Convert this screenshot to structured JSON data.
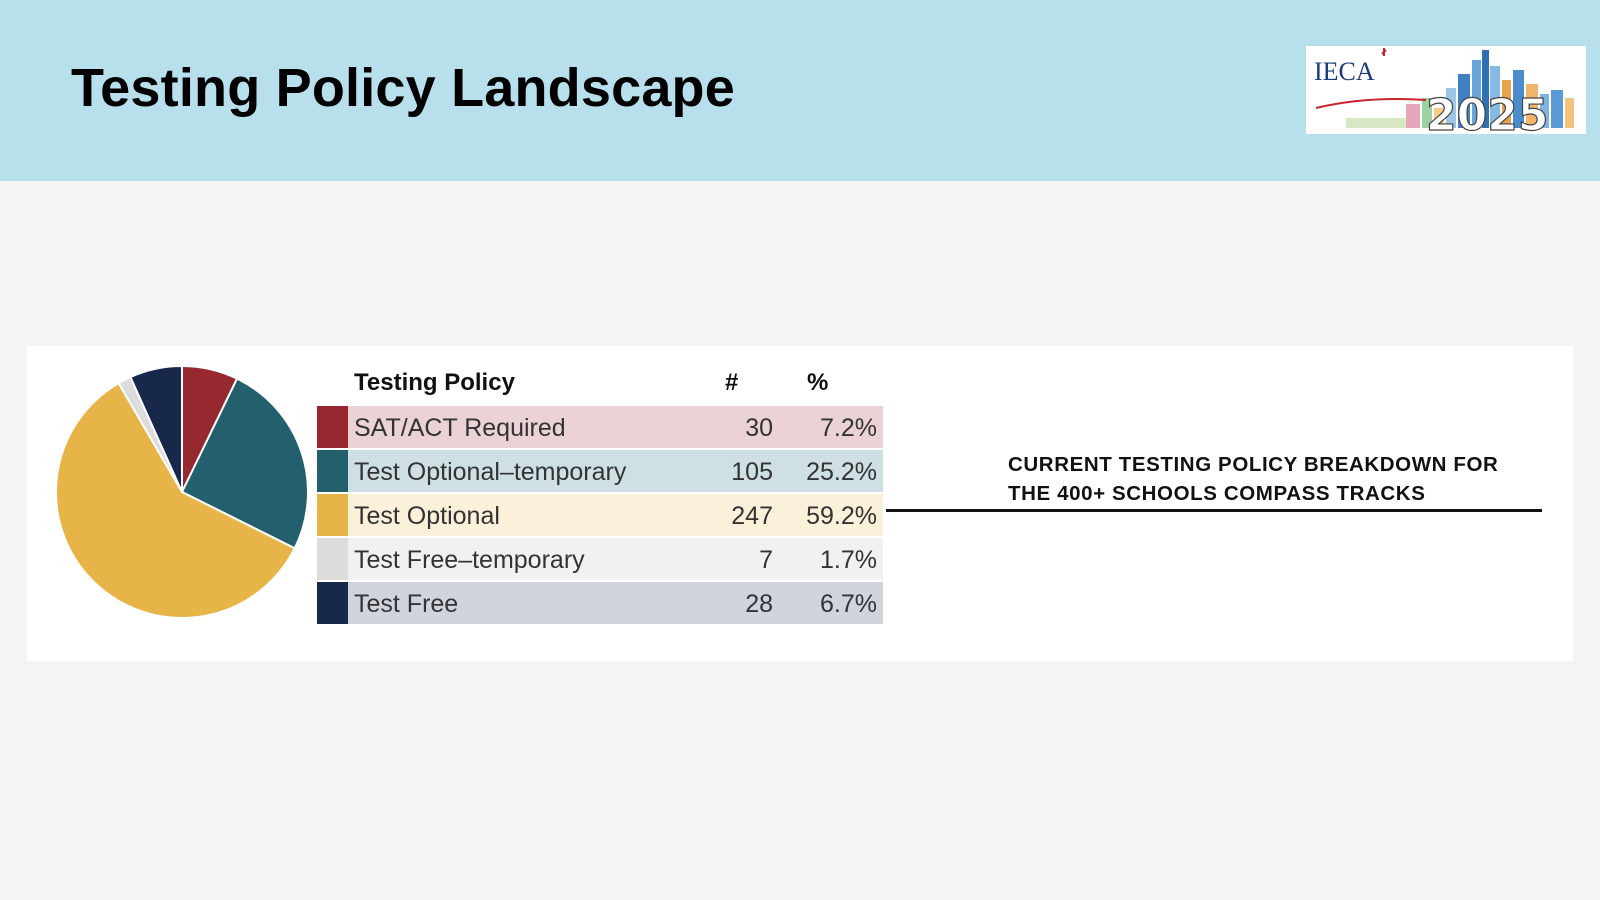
{
  "slide": {
    "title": "Testing Policy Landscape",
    "caption_line1": "CURRENT TESTING POLICY BREAKDOWN FOR",
    "caption_line2": "THE 400+ SCHOOLS COMPASS TRACKS"
  },
  "logo": {
    "text": "IECA",
    "year": "2025"
  },
  "table": {
    "col_policy": "Testing Policy",
    "col_count": "#",
    "col_pct": "%"
  },
  "chart_data": {
    "type": "pie",
    "categories": [
      "SAT/ACT Required",
      "Test Optional–temporary",
      "Test Optional",
      "Test Free–temporary",
      "Test Free"
    ],
    "values": [
      30,
      105,
      247,
      7,
      28
    ],
    "percent_labels": [
      "7.2%",
      "25.2%",
      "59.2%",
      "1.7%",
      "6.7%"
    ],
    "colors": [
      "#98282f",
      "#245f6e",
      "#e6b447",
      "#dcdcdc",
      "#17284a"
    ],
    "band_colors": [
      "#ebd2d5",
      "#cfe0e5",
      "#fbf0d9",
      "#f1f1f1",
      "#cfd4dd"
    ],
    "start_angle_deg": 0,
    "direction": "clockwise",
    "legend": "right",
    "rows": [
      {
        "label": "SAT/ACT Required",
        "count": "30",
        "pct": "7.2%"
      },
      {
        "label": "Test Optional–temporary",
        "count": "105",
        "pct": "25.2%"
      },
      {
        "label": "Test Optional",
        "count": "247",
        "pct": "59.2%"
      },
      {
        "label": "Test Free–temporary",
        "count": "7",
        "pct": "1.7%"
      },
      {
        "label": "Test Free",
        "count": "28",
        "pct": "6.7%"
      }
    ]
  }
}
